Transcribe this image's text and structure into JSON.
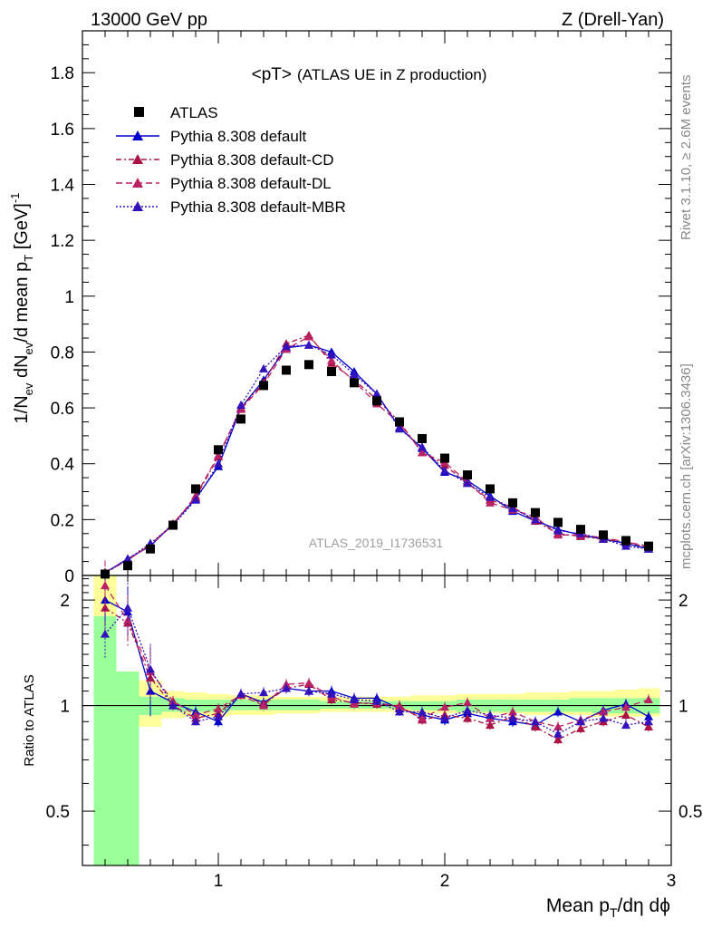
{
  "header": {
    "left": "13000 GeV pp",
    "right": "Z (Drell-Yan)"
  },
  "side_labels": {
    "rivet": "Rivet 3.1.10, ≥ 2.6M events",
    "mcplots": "mcplots.cern.ch [arXiv:1306.3436]"
  },
  "chart_data": {
    "type": "line",
    "title_main": "<pT>",
    "title_sub": "(ATLAS UE in Z production)",
    "watermark": "ATLAS_2019_I1736531",
    "xlabel": "Mean p_T/dη dϕ",
    "ylabel": "1/N_ev dN_ev/d mean p_T [GeV]^-1",
    "ratio_ylabel": "Ratio to ATLAS",
    "xlim": [
      0.4,
      3.0
    ],
    "ylim": [
      0,
      1.95
    ],
    "ratio_ylim": [
      0.35,
      2.35
    ],
    "x_ticks": [
      "1",
      "2",
      "3"
    ],
    "y_ticks": [
      "0",
      "0.2",
      "0.4",
      "0.6",
      "0.8",
      "1",
      "1.2",
      "1.4",
      "1.6",
      "1.8"
    ],
    "ratio_ticks": [
      "0.5",
      "1",
      "2"
    ],
    "x": [
      0.5,
      0.6,
      0.7,
      0.8,
      0.9,
      1.0,
      1.1,
      1.2,
      1.3,
      1.4,
      1.5,
      1.6,
      1.7,
      1.8,
      1.9,
      2.0,
      2.1,
      2.2,
      2.3,
      2.4,
      2.5,
      2.6,
      2.7,
      2.8,
      2.9
    ],
    "data": {
      "name": "ATLAS",
      "color": "#000000",
      "values": [
        0.005,
        0.035,
        0.095,
        0.18,
        0.31,
        0.45,
        0.56,
        0.68,
        0.735,
        0.755,
        0.73,
        0.69,
        0.625,
        0.55,
        0.49,
        0.42,
        0.36,
        0.31,
        0.26,
        0.225,
        0.19,
        0.165,
        0.145,
        0.125,
        0.105
      ]
    },
    "series": [
      {
        "name": "Pythia 8.308 default",
        "color": "#0000cc",
        "dash": "",
        "values": [
          0.01,
          0.06,
          0.105,
          0.185,
          0.275,
          0.39,
          0.6,
          0.7,
          0.815,
          0.825,
          0.8,
          0.73,
          0.65,
          0.53,
          0.455,
          0.37,
          0.34,
          0.285,
          0.23,
          0.195,
          0.165,
          0.145,
          0.13,
          0.115,
          0.095
        ],
        "ratio": [
          2.0,
          1.85,
          1.1,
          1.02,
          0.96,
          0.9,
          1.08,
          1.02,
          1.12,
          1.1,
          1.1,
          1.05,
          1.05,
          0.98,
          0.94,
          0.91,
          0.95,
          0.92,
          0.9,
          0.88,
          0.96,
          0.9,
          0.97,
          1.01,
          0.93
        ]
      },
      {
        "name": "Pythia 8.308 default-CD",
        "color": "#aa1144",
        "dash": "6,3,2,3",
        "values": [
          0.01,
          0.055,
          0.11,
          0.185,
          0.28,
          0.425,
          0.6,
          0.69,
          0.83,
          0.86,
          0.76,
          0.7,
          0.63,
          0.55,
          0.44,
          0.395,
          0.33,
          0.27,
          0.245,
          0.195,
          0.15,
          0.14,
          0.13,
          0.12,
          0.1
        ],
        "ratio": [
          1.9,
          1.72,
          1.2,
          1.0,
          0.92,
          0.95,
          1.08,
          1.01,
          1.12,
          1.15,
          1.04,
          1.02,
          1.01,
          1.0,
          0.91,
          0.94,
          0.92,
          0.88,
          0.93,
          0.87,
          0.8,
          0.86,
          0.9,
          0.94,
          0.87
        ]
      },
      {
        "name": "Pythia 8.308 default-DL",
        "color": "#bb2266",
        "dash": "7,4",
        "values": [
          0.012,
          0.055,
          0.11,
          0.18,
          0.285,
          0.43,
          0.595,
          0.685,
          0.81,
          0.855,
          0.77,
          0.695,
          0.615,
          0.545,
          0.44,
          0.405,
          0.335,
          0.26,
          0.235,
          0.21,
          0.145,
          0.145,
          0.135,
          0.12,
          0.105
        ],
        "ratio": [
          2.2,
          1.75,
          1.25,
          1.03,
          0.94,
          0.98,
          1.07,
          1.0,
          1.15,
          1.16,
          1.06,
          1.01,
          1.02,
          0.99,
          0.92,
          0.99,
          1.02,
          0.92,
          0.96,
          0.9,
          0.87,
          0.91,
          0.96,
          0.99,
          1.04
        ]
      },
      {
        "name": "Pythia 8.308 default-MBR",
        "color": "#3311bb",
        "dash": "2,2",
        "values": [
          0.008,
          0.058,
          0.115,
          0.18,
          0.27,
          0.4,
          0.61,
          0.74,
          0.82,
          0.825,
          0.79,
          0.72,
          0.65,
          0.525,
          0.46,
          0.375,
          0.33,
          0.28,
          0.24,
          0.2,
          0.16,
          0.15,
          0.13,
          0.105,
          0.095
        ],
        "ratio": [
          1.6,
          1.9,
          1.27,
          1.0,
          0.9,
          0.93,
          1.08,
          1.09,
          1.12,
          1.1,
          1.08,
          1.04,
          1.03,
          0.96,
          0.96,
          0.92,
          0.97,
          0.94,
          0.92,
          0.9,
          0.83,
          0.9,
          0.92,
          0.88,
          0.9
        ]
      }
    ],
    "ratio_bands": {
      "x_edges": [
        0.45,
        0.55,
        0.65,
        0.75,
        0.85,
        0.95,
        1.05,
        1.15,
        1.25,
        1.35,
        1.45,
        1.55,
        1.65,
        1.75,
        1.85,
        1.95,
        2.05,
        2.15,
        2.25,
        2.35,
        2.45,
        2.55,
        2.65,
        2.75,
        2.85,
        2.95
      ],
      "yellow_lo": [
        0.35,
        0.82,
        0.87,
        0.92,
        0.93,
        0.93,
        0.94,
        0.94,
        0.95,
        0.95,
        0.96,
        0.96,
        0.96,
        0.96,
        0.95,
        0.95,
        0.95,
        0.95,
        0.95,
        0.94,
        0.94,
        0.94,
        0.93,
        0.93,
        0.93
      ],
      "yellow_hi": [
        2.35,
        1.25,
        1.18,
        1.1,
        1.09,
        1.08,
        1.07,
        1.07,
        1.06,
        1.06,
        1.06,
        1.06,
        1.06,
        1.06,
        1.07,
        1.07,
        1.08,
        1.08,
        1.08,
        1.09,
        1.09,
        1.1,
        1.1,
        1.11,
        1.12
      ],
      "green_lo": [
        0.35,
        0.35,
        0.94,
        0.96,
        0.96,
        0.96,
        0.97,
        0.97,
        0.97,
        0.97,
        0.98,
        0.98,
        0.98,
        0.98,
        0.97,
        0.97,
        0.96,
        0.96,
        0.96,
        0.96,
        0.96,
        0.96,
        0.95,
        0.95,
        0.95
      ],
      "green_hi": [
        1.8,
        1.25,
        1.06,
        1.05,
        1.04,
        1.04,
        1.04,
        1.04,
        1.04,
        1.04,
        1.03,
        1.03,
        1.03,
        1.03,
        1.03,
        1.03,
        1.04,
        1.04,
        1.04,
        1.04,
        1.04,
        1.05,
        1.05,
        1.05,
        1.05
      ]
    }
  }
}
